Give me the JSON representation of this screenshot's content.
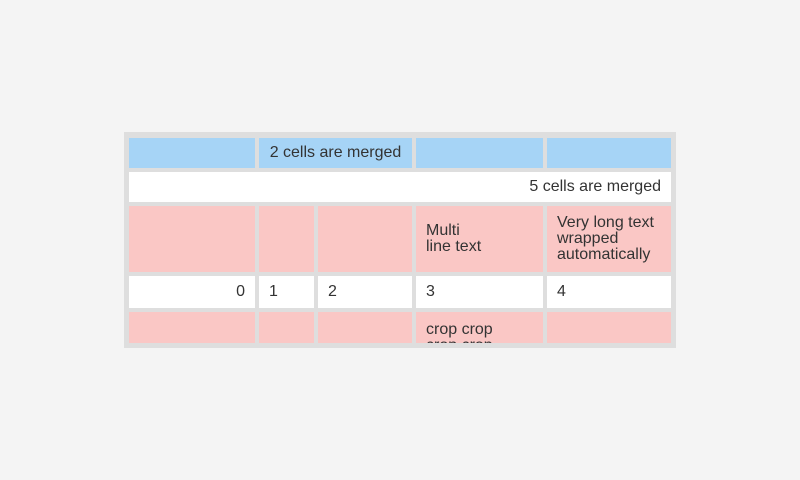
{
  "colors": {
    "page_bg": "#f4f4f4",
    "table_bg": "#dedede",
    "cell_blue": "#a6d4f6",
    "cell_pink": "#fac7c5",
    "cell_white": "#ffffff",
    "text": "#333333"
  },
  "table": {
    "row1": {
      "col1": "",
      "merged2": "2 cells are merged",
      "col4": "",
      "col5": ""
    },
    "row2": {
      "merged5": "5 cells are merged"
    },
    "row3": {
      "col1": "",
      "col2": "",
      "col3": "",
      "col4": "Multi\nline text",
      "col5": "Very long text wrapped automatically"
    },
    "row4": {
      "col1": "0",
      "col2": "1",
      "col3": "2",
      "col4": "3",
      "col5": "4"
    },
    "row5": {
      "col1": "",
      "col2": "",
      "col3": "",
      "col4": "crop crop crop crop",
      "col5": ""
    }
  }
}
